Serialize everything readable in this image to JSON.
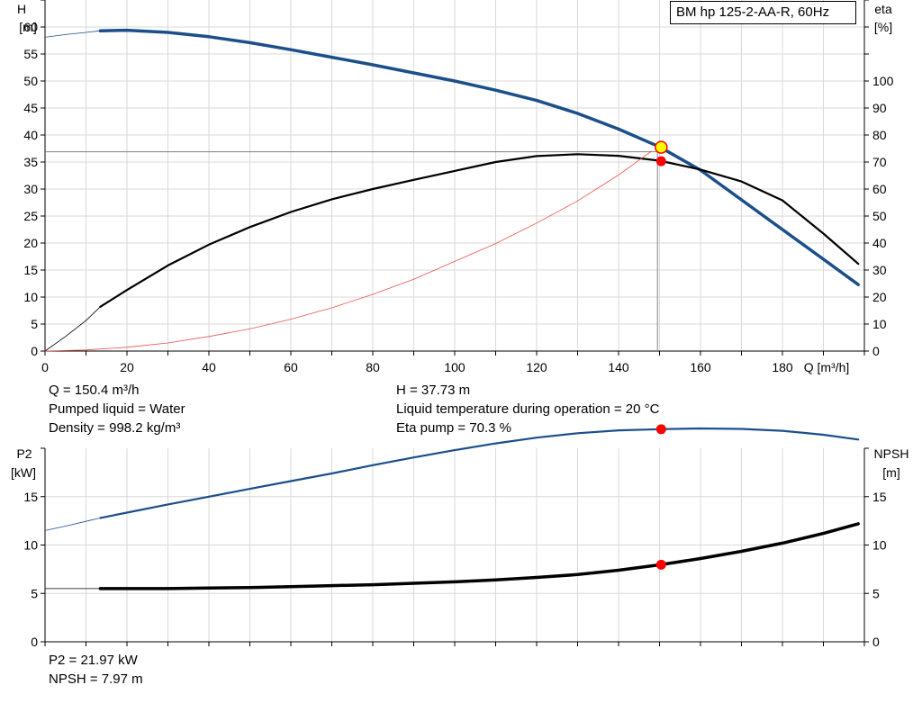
{
  "chart_data": [
    {
      "type": "line",
      "title": "BM hp 125-2-AA-R, 60Hz",
      "xlabel": "Q [m³/h]",
      "ylabel_left": [
        "H",
        "[m]"
      ],
      "ylabel_right": [
        "eta",
        "[%]"
      ],
      "xlim": [
        0,
        200
      ],
      "xticks": [
        "0",
        "20",
        "40",
        "60",
        "80",
        "100",
        "120",
        "140",
        "160",
        "180"
      ],
      "ylim_left": [
        0,
        65
      ],
      "yticks_left": [
        "0",
        "5",
        "10",
        "15",
        "20",
        "25",
        "30",
        "35",
        "40",
        "45",
        "50",
        "55",
        "60"
      ],
      "ylim_right": [
        0,
        130
      ],
      "yticks_right": [
        "0",
        "10",
        "20",
        "30",
        "40",
        "50",
        "60",
        "70",
        "80",
        "90",
        "100"
      ],
      "grid": true,
      "series": [
        {
          "name": "H",
          "axis": "left",
          "color": "#1b4f8a",
          "x": [
            13.5,
            20,
            30,
            40,
            50,
            60,
            70,
            80,
            90,
            100,
            110,
            120,
            130,
            140,
            150,
            160,
            170,
            180,
            190,
            198.5
          ],
          "y": [
            59.3,
            59.4,
            59.0,
            58.2,
            57.1,
            55.8,
            54.4,
            53.0,
            51.5,
            50.0,
            48.3,
            46.4,
            44.0,
            41.1,
            37.8,
            33.5,
            28.0,
            22.5,
            17.0,
            12.3
          ],
          "extension_x": [
            0,
            5,
            10,
            13.5
          ],
          "extension_y": [
            58.1,
            58.6,
            59.0,
            59.3
          ]
        },
        {
          "name": "eta",
          "axis": "right",
          "color": "#000000",
          "x": [
            13.5,
            20,
            30,
            40,
            50,
            60,
            70,
            80,
            90,
            100,
            110,
            120,
            130,
            140,
            150,
            160,
            170,
            180,
            190,
            198.5
          ],
          "y": [
            16.4,
            22.6,
            31.7,
            39.4,
            45.9,
            51.5,
            56.2,
            60.0,
            63.4,
            66.7,
            70.0,
            72.2,
            72.9,
            72.3,
            70.5,
            67.2,
            62.8,
            55.8,
            43.5,
            32.3
          ],
          "extension_x": [
            0,
            5,
            10,
            13.5
          ],
          "extension_y": [
            0,
            5.4,
            11.3,
            16.4
          ]
        },
        {
          "name": "system curve",
          "axis": "left",
          "color": "#e8524a",
          "x": [
            0,
            10,
            20,
            30,
            40,
            50,
            60,
            70,
            80,
            90,
            100,
            110,
            120,
            130,
            140,
            148
          ],
          "y": [
            0,
            0.2,
            0.7,
            1.5,
            2.7,
            4.1,
            5.9,
            8.0,
            10.5,
            13.3,
            16.6,
            19.9,
            23.7,
            27.8,
            32.6,
            37.0
          ]
        }
      ],
      "operating_point": {
        "x": 150.4,
        "H": 37.73,
        "eta": 70.3
      },
      "duty_guide": {
        "x": 149.5,
        "H": 36.9
      }
    },
    {
      "type": "line",
      "xlim": [
        0,
        200
      ],
      "ylabel_left": [
        "P2",
        "[kW]"
      ],
      "ylabel_right": [
        "NPSH",
        "[m]"
      ],
      "ylim_left": [
        0,
        20
      ],
      "yticks_left": [
        "0",
        "5",
        "10",
        "15"
      ],
      "ylim_right": [
        0,
        20
      ],
      "yticks_right": [
        "0",
        "5",
        "10",
        "15"
      ],
      "grid": true,
      "series": [
        {
          "name": "P2",
          "axis": "left",
          "color": "#1b4f8a",
          "x": [
            13.5,
            20,
            30,
            40,
            50,
            60,
            70,
            80,
            90,
            100,
            110,
            120,
            130,
            140,
            150,
            160,
            170,
            180,
            190,
            198.5
          ],
          "y": [
            12.8,
            13.35,
            14.2,
            15.0,
            15.8,
            16.6,
            17.4,
            18.25,
            19.05,
            19.8,
            20.5,
            21.1,
            21.55,
            21.85,
            21.97,
            22.05,
            22.0,
            21.8,
            21.4,
            20.9
          ],
          "extension_x": [
            0,
            5,
            10,
            13.5
          ],
          "extension_y": [
            11.5,
            11.95,
            12.45,
            12.8
          ]
        },
        {
          "name": "NPSH",
          "axis": "right",
          "color": "#000000",
          "x": [
            13.5,
            20,
            30,
            40,
            50,
            60,
            70,
            80,
            90,
            100,
            110,
            120,
            130,
            140,
            150,
            160,
            170,
            180,
            190,
            198.5
          ],
          "y": [
            5.5,
            5.5,
            5.5,
            5.55,
            5.6,
            5.7,
            5.8,
            5.9,
            6.05,
            6.2,
            6.4,
            6.65,
            6.95,
            7.4,
            7.95,
            8.6,
            9.35,
            10.2,
            11.2,
            12.2
          ],
          "extension_x": [
            0,
            13.5
          ],
          "extension_y": [
            5.5,
            5.5
          ]
        }
      ],
      "operating_point": {
        "x": 150.4,
        "P2": 21.97,
        "NPSH": 7.97
      }
    }
  ],
  "info": {
    "q": "Q = 150.4 m³/h",
    "liquid": "Pumped liquid = Water",
    "density": "Density = 998.2 kg/m³",
    "h": "H = 37.73 m",
    "temperature": "Liquid temperature during operation = 20 °C",
    "eta": "Eta pump = 70.3 %",
    "p2": "P2 = 21.97 kW",
    "npsh": "NPSH = 7.97 m"
  }
}
